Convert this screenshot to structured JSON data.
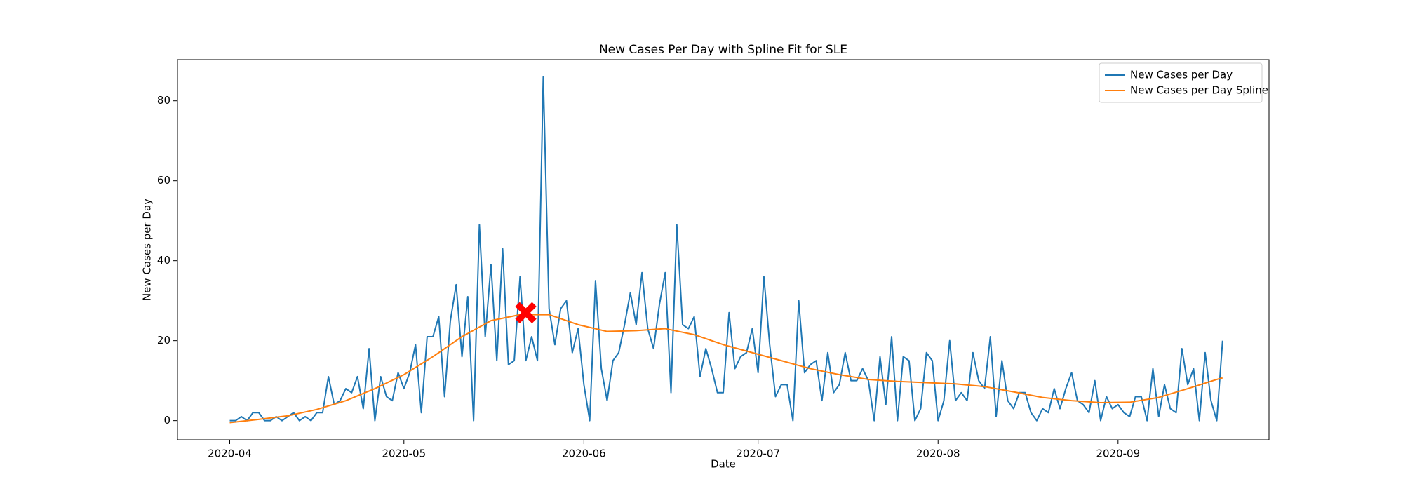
{
  "chart_data": {
    "type": "line",
    "title": "New Cases Per Day with Spline Fit for SLE",
    "x_label": "Date",
    "y_label": "New Cases per Day",
    "xlim": [
      "2020-03-23",
      "2020-09-27"
    ],
    "ylim": [
      -4.8,
      90.3
    ],
    "xticks": [
      {
        "value": "2020-04-01",
        "label": "2020-04"
      },
      {
        "value": "2020-05-01",
        "label": "2020-05"
      },
      {
        "value": "2020-06-01",
        "label": "2020-06"
      },
      {
        "value": "2020-07-01",
        "label": "2020-07"
      },
      {
        "value": "2020-08-01",
        "label": "2020-08"
      },
      {
        "value": "2020-09-01",
        "label": "2020-09"
      }
    ],
    "yticks": [
      0,
      20,
      40,
      60,
      80
    ],
    "grid": false,
    "legend": "upper right",
    "series": [
      {
        "name": "New Cases per Day",
        "color": "#1f77b4",
        "x": [
          "2020-04-01",
          "2020-04-02",
          "2020-04-03",
          "2020-04-04",
          "2020-04-05",
          "2020-04-06",
          "2020-04-07",
          "2020-04-08",
          "2020-04-09",
          "2020-04-10",
          "2020-04-11",
          "2020-04-12",
          "2020-04-13",
          "2020-04-14",
          "2020-04-15",
          "2020-04-16",
          "2020-04-17",
          "2020-04-18",
          "2020-04-19",
          "2020-04-20",
          "2020-04-21",
          "2020-04-22",
          "2020-04-23",
          "2020-04-24",
          "2020-04-25",
          "2020-04-26",
          "2020-04-27",
          "2020-04-28",
          "2020-04-29",
          "2020-04-30",
          "2020-05-01",
          "2020-05-02",
          "2020-05-03",
          "2020-05-04",
          "2020-05-05",
          "2020-05-06",
          "2020-05-07",
          "2020-05-08",
          "2020-05-09",
          "2020-05-10",
          "2020-05-11",
          "2020-05-12",
          "2020-05-13",
          "2020-05-14",
          "2020-05-15",
          "2020-05-16",
          "2020-05-17",
          "2020-05-18",
          "2020-05-19",
          "2020-05-20",
          "2020-05-21",
          "2020-05-22",
          "2020-05-23",
          "2020-05-24",
          "2020-05-25",
          "2020-05-26",
          "2020-05-27",
          "2020-05-28",
          "2020-05-29",
          "2020-05-30",
          "2020-05-31",
          "2020-06-01",
          "2020-06-02",
          "2020-06-03",
          "2020-06-04",
          "2020-06-05",
          "2020-06-06",
          "2020-06-07",
          "2020-06-08",
          "2020-06-09",
          "2020-06-10",
          "2020-06-11",
          "2020-06-12",
          "2020-06-13",
          "2020-06-14",
          "2020-06-15",
          "2020-06-16",
          "2020-06-17",
          "2020-06-18",
          "2020-06-19",
          "2020-06-20",
          "2020-06-21",
          "2020-06-22",
          "2020-06-23",
          "2020-06-24",
          "2020-06-25",
          "2020-06-26",
          "2020-06-27",
          "2020-06-28",
          "2020-06-29",
          "2020-06-30",
          "2020-07-01",
          "2020-07-02",
          "2020-07-03",
          "2020-07-04",
          "2020-07-05",
          "2020-07-06",
          "2020-07-07",
          "2020-07-08",
          "2020-07-09",
          "2020-07-10",
          "2020-07-11",
          "2020-07-12",
          "2020-07-13",
          "2020-07-14",
          "2020-07-15",
          "2020-07-16",
          "2020-07-17",
          "2020-07-18",
          "2020-07-19",
          "2020-07-20",
          "2020-07-21",
          "2020-07-22",
          "2020-07-23",
          "2020-07-24",
          "2020-07-25",
          "2020-07-26",
          "2020-07-27",
          "2020-07-28",
          "2020-07-29",
          "2020-07-30",
          "2020-07-31",
          "2020-08-01",
          "2020-08-02",
          "2020-08-03",
          "2020-08-04",
          "2020-08-05",
          "2020-08-06",
          "2020-08-07",
          "2020-08-08",
          "2020-08-09",
          "2020-08-10",
          "2020-08-11",
          "2020-08-12",
          "2020-08-13",
          "2020-08-14",
          "2020-08-15",
          "2020-08-16",
          "2020-08-17",
          "2020-08-18",
          "2020-08-19",
          "2020-08-20",
          "2020-08-21",
          "2020-08-22",
          "2020-08-23",
          "2020-08-24",
          "2020-08-25",
          "2020-08-26",
          "2020-08-27",
          "2020-08-28",
          "2020-08-29",
          "2020-08-30",
          "2020-08-31",
          "2020-09-01",
          "2020-09-02",
          "2020-09-03",
          "2020-09-04",
          "2020-09-05",
          "2020-09-06",
          "2020-09-07",
          "2020-09-08",
          "2020-09-09",
          "2020-09-10",
          "2020-09-11",
          "2020-09-12",
          "2020-09-13",
          "2020-09-14",
          "2020-09-15",
          "2020-09-16",
          "2020-09-17",
          "2020-09-18",
          "2020-09-19"
        ],
        "values": [
          0,
          0,
          1,
          0,
          2,
          2,
          0,
          0,
          1,
          0,
          1,
          2,
          0,
          1,
          0,
          2,
          2,
          11,
          4,
          5,
          8,
          7,
          11,
          3,
          18,
          0,
          11,
          6,
          5,
          12,
          8,
          12,
          19,
          2,
          21,
          21,
          26,
          6,
          25,
          34,
          16,
          31,
          0,
          49,
          21,
          39,
          15,
          43,
          14,
          15,
          36,
          15,
          21,
          15,
          86,
          28,
          19,
          28,
          30,
          17,
          23,
          9,
          0,
          35,
          13,
          5,
          15,
          17,
          24,
          32,
          24,
          37,
          23,
          18,
          29,
          37,
          7,
          49,
          24,
          23,
          26,
          11,
          18,
          13,
          7,
          7,
          27,
          13,
          16,
          17,
          23,
          12,
          36,
          19,
          6,
          9,
          9,
          0,
          30,
          12,
          14,
          15,
          5,
          17,
          7,
          9,
          17,
          10,
          10,
          13,
          10,
          0,
          16,
          4,
          21,
          0,
          16,
          15,
          0,
          3,
          17,
          15,
          0,
          5,
          20,
          5,
          7,
          5,
          17,
          10,
          8,
          21,
          1,
          15,
          5,
          3,
          7,
          7,
          2,
          0,
          3,
          2,
          8,
          3,
          8,
          12,
          5,
          4,
          2,
          10,
          0,
          6,
          3,
          4,
          2,
          1,
          6,
          6,
          0,
          13,
          1,
          9,
          3,
          2,
          18,
          9,
          13,
          0,
          17,
          5,
          0,
          20
        ]
      },
      {
        "name": "New Cases per Day Spline",
        "color": "#ff7f0e",
        "x": [
          "2020-04-01",
          "2020-04-06",
          "2020-04-11",
          "2020-04-16",
          "2020-04-21",
          "2020-04-26",
          "2020-05-01",
          "2020-05-06",
          "2020-05-11",
          "2020-05-16",
          "2020-05-21",
          "2020-05-26",
          "2020-05-31",
          "2020-06-05",
          "2020-06-10",
          "2020-06-15",
          "2020-06-20",
          "2020-06-25",
          "2020-06-30",
          "2020-07-05",
          "2020-07-10",
          "2020-07-15",
          "2020-07-20",
          "2020-07-25",
          "2020-07-30",
          "2020-08-04",
          "2020-08-09",
          "2020-08-14",
          "2020-08-19",
          "2020-08-24",
          "2020-08-29",
          "2020-09-03",
          "2020-09-08",
          "2020-09-13",
          "2020-09-18",
          "2020-09-19"
        ],
        "values": [
          -0.5,
          0.3,
          1.2,
          2.8,
          5,
          8,
          11.5,
          16,
          21,
          25,
          26.5,
          26.5,
          24,
          22.3,
          22.5,
          23,
          21.5,
          19,
          17,
          15,
          13,
          11.5,
          10.3,
          9.8,
          9.5,
          9.2,
          8.5,
          7.2,
          5.8,
          5,
          4.5,
          4.6,
          5.8,
          8,
          10.3,
          10.7
        ]
      }
    ],
    "marker": {
      "x": "2020-05-22",
      "y": 27,
      "color": "#ff0000"
    }
  }
}
